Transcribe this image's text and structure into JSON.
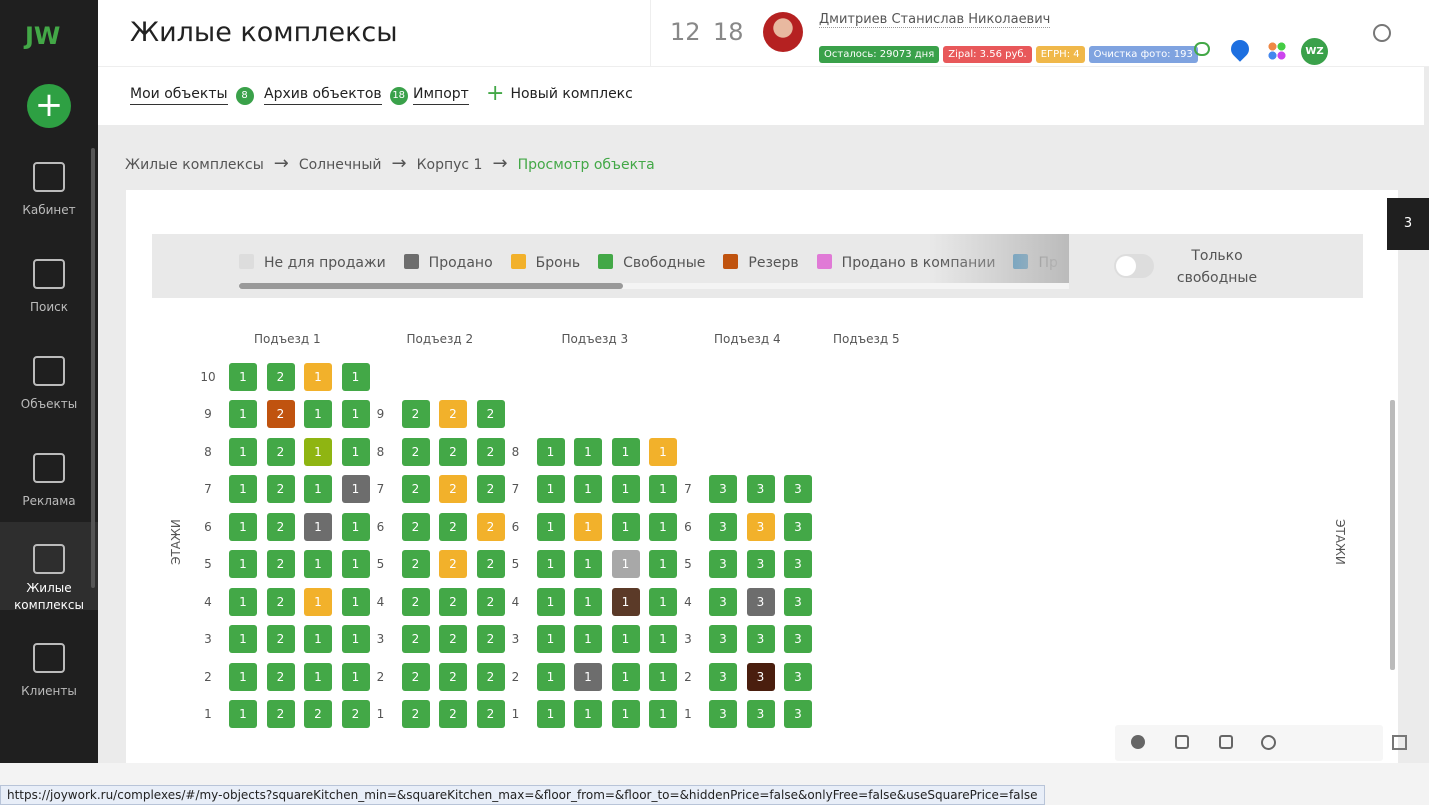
{
  "sidebar": {
    "logo": "JW",
    "items": [
      "Кабинет",
      "Поиск",
      "Объекты",
      "Реклама",
      "Жилые комплексы",
      "Клиенты"
    ]
  },
  "header": {
    "title": "Жилые комплексы",
    "counters": [
      "12",
      "18"
    ],
    "user": "Дмитриев Станислав Николаевич",
    "badges": [
      {
        "text": "Осталось: 29073 дня",
        "color": "#3aa14a"
      },
      {
        "text": "Zipal: 3.56 руб.",
        "color": "#e8585a"
      },
      {
        "text": "ЕГРН: 4",
        "color": "#f0b84a"
      },
      {
        "text": "Очистка фото: 193",
        "color": "#7fa3e0"
      }
    ],
    "avatar": "WZ"
  },
  "tabs": [
    {
      "label": "Мои объекты",
      "count": "8"
    },
    {
      "label": "Архив объектов",
      "count": "18"
    },
    {
      "label": "Импорт"
    },
    {
      "label": "Новый комплекс"
    }
  ],
  "breadcrumbs": [
    "Жилые комплексы",
    "Солнечный",
    "Корпус 1",
    "Просмотр объекта"
  ],
  "legend": [
    {
      "label": "Не для продажи",
      "color": "#dddddd"
    },
    {
      "label": "Продано",
      "color": "#6d6d6d"
    },
    {
      "label": "Бронь",
      "color": "#f2b12b"
    },
    {
      "label": "Свободные",
      "color": "#43a847"
    },
    {
      "label": "Резерв",
      "color": "#c0530f"
    },
    {
      "label": "Продано в компании",
      "color": "#e07ad6"
    },
    {
      "label": "Пр",
      "color": "#1e88c8"
    }
  ],
  "toggle": "Только свободные",
  "side_tab": "3",
  "axis_label": "ЭТАЖИ",
  "entrances": [
    {
      "name": "Подъезд 1",
      "floors": [
        {
          "floor": "10",
          "cells": [
            {
              "label": "1",
              "color": "#43a847"
            },
            {
              "label": "2",
              "color": "#43a847"
            },
            {
              "label": "1",
              "color": "#f2b12b"
            },
            {
              "label": "1",
              "color": "#43a847"
            }
          ]
        },
        {
          "floor": "9",
          "cells": [
            {
              "label": "1",
              "color": "#43a847"
            },
            {
              "label": "2",
              "color": "#c0530f"
            },
            {
              "label": "1",
              "color": "#43a847"
            },
            {
              "label": "1",
              "color": "#43a847"
            }
          ]
        },
        {
          "floor": "8",
          "cells": [
            {
              "label": "1",
              "color": "#43a847"
            },
            {
              "label": "2",
              "color": "#43a847"
            },
            {
              "label": "1",
              "color": "#8fb512"
            },
            {
              "label": "1",
              "color": "#43a847"
            }
          ]
        },
        {
          "floor": "7",
          "cells": [
            {
              "label": "1",
              "color": "#43a847"
            },
            {
              "label": "2",
              "color": "#43a847"
            },
            {
              "label": "1",
              "color": "#43a847"
            },
            {
              "label": "1",
              "color": "#6d6d6d"
            }
          ]
        },
        {
          "floor": "6",
          "cells": [
            {
              "label": "1",
              "color": "#43a847"
            },
            {
              "label": "2",
              "color": "#43a847"
            },
            {
              "label": "1",
              "color": "#6d6d6d"
            },
            {
              "label": "1",
              "color": "#43a847"
            }
          ]
        },
        {
          "floor": "5",
          "cells": [
            {
              "label": "1",
              "color": "#43a847"
            },
            {
              "label": "2",
              "color": "#43a847"
            },
            {
              "label": "1",
              "color": "#43a847"
            },
            {
              "label": "1",
              "color": "#43a847"
            }
          ]
        },
        {
          "floor": "4",
          "cells": [
            {
              "label": "1",
              "color": "#43a847"
            },
            {
              "label": "2",
              "color": "#43a847"
            },
            {
              "label": "1",
              "color": "#f2b12b"
            },
            {
              "label": "1",
              "color": "#43a847"
            }
          ]
        },
        {
          "floor": "3",
          "cells": [
            {
              "label": "1",
              "color": "#43a847"
            },
            {
              "label": "2",
              "color": "#43a847"
            },
            {
              "label": "1",
              "color": "#43a847"
            },
            {
              "label": "1",
              "color": "#43a847"
            }
          ]
        },
        {
          "floor": "2",
          "cells": [
            {
              "label": "1",
              "color": "#43a847"
            },
            {
              "label": "2",
              "color": "#43a847"
            },
            {
              "label": "1",
              "color": "#43a847"
            },
            {
              "label": "1",
              "color": "#43a847"
            }
          ]
        },
        {
          "floor": "1",
          "cells": [
            {
              "label": "1",
              "color": "#43a847"
            },
            {
              "label": "2",
              "color": "#43a847"
            },
            {
              "label": "2",
              "color": "#43a847"
            },
            {
              "label": "2",
              "color": "#43a847"
            }
          ]
        }
      ]
    },
    {
      "name": "Подъезд 2",
      "floors": [
        {
          "floor": "9",
          "cells": [
            {
              "label": "2",
              "color": "#43a847"
            },
            {
              "label": "2",
              "color": "#f2b12b"
            },
            {
              "label": "2",
              "color": "#43a847"
            }
          ]
        },
        {
          "floor": "8",
          "cells": [
            {
              "label": "2",
              "color": "#43a847"
            },
            {
              "label": "2",
              "color": "#43a847"
            },
            {
              "label": "2",
              "color": "#43a847"
            }
          ]
        },
        {
          "floor": "7",
          "cells": [
            {
              "label": "2",
              "color": "#43a847"
            },
            {
              "label": "2",
              "color": "#f2b12b"
            },
            {
              "label": "2",
              "color": "#43a847"
            }
          ]
        },
        {
          "floor": "6",
          "cells": [
            {
              "label": "2",
              "color": "#43a847"
            },
            {
              "label": "2",
              "color": "#43a847"
            },
            {
              "label": "2",
              "color": "#f2b12b"
            }
          ]
        },
        {
          "floor": "5",
          "cells": [
            {
              "label": "2",
              "color": "#43a847"
            },
            {
              "label": "2",
              "color": "#f2b12b"
            },
            {
              "label": "2",
              "color": "#43a847"
            }
          ]
        },
        {
          "floor": "4",
          "cells": [
            {
              "label": "2",
              "color": "#43a847"
            },
            {
              "label": "2",
              "color": "#43a847"
            },
            {
              "label": "2",
              "color": "#43a847"
            }
          ]
        },
        {
          "floor": "3",
          "cells": [
            {
              "label": "2",
              "color": "#43a847"
            },
            {
              "label": "2",
              "color": "#43a847"
            },
            {
              "label": "2",
              "color": "#43a847"
            }
          ]
        },
        {
          "floor": "2",
          "cells": [
            {
              "label": "2",
              "color": "#43a847"
            },
            {
              "label": "2",
              "color": "#43a847"
            },
            {
              "label": "2",
              "color": "#43a847"
            }
          ]
        },
        {
          "floor": "1",
          "cells": [
            {
              "label": "2",
              "color": "#43a847"
            },
            {
              "label": "2",
              "color": "#43a847"
            },
            {
              "label": "2",
              "color": "#43a847"
            }
          ]
        }
      ]
    },
    {
      "name": "Подъезд 3",
      "floors": [
        {
          "floor": "8",
          "cells": [
            {
              "label": "1",
              "color": "#43a847"
            },
            {
              "label": "1",
              "color": "#43a847"
            },
            {
              "label": "1",
              "color": "#43a847"
            },
            {
              "label": "1",
              "color": "#f2b12b"
            }
          ]
        },
        {
          "floor": "7",
          "cells": [
            {
              "label": "1",
              "color": "#43a847"
            },
            {
              "label": "1",
              "color": "#43a847"
            },
            {
              "label": "1",
              "color": "#43a847"
            },
            {
              "label": "1",
              "color": "#43a847"
            }
          ]
        },
        {
          "floor": "6",
          "cells": [
            {
              "label": "1",
              "color": "#43a847"
            },
            {
              "label": "1",
              "color": "#f2b12b"
            },
            {
              "label": "1",
              "color": "#43a847"
            },
            {
              "label": "1",
              "color": "#43a847"
            }
          ]
        },
        {
          "floor": "5",
          "cells": [
            {
              "label": "1",
              "color": "#43a847"
            },
            {
              "label": "1",
              "color": "#43a847"
            },
            {
              "label": "1",
              "color": "#a8a8a8"
            },
            {
              "label": "1",
              "color": "#43a847"
            }
          ]
        },
        {
          "floor": "4",
          "cells": [
            {
              "label": "1",
              "color": "#43a847"
            },
            {
              "label": "1",
              "color": "#43a847"
            },
            {
              "label": "1",
              "color": "#5b3a28"
            },
            {
              "label": "1",
              "color": "#43a847"
            }
          ]
        },
        {
          "floor": "3",
          "cells": [
            {
              "label": "1",
              "color": "#43a847"
            },
            {
              "label": "1",
              "color": "#43a847"
            },
            {
              "label": "1",
              "color": "#43a847"
            },
            {
              "label": "1",
              "color": "#43a847"
            }
          ]
        },
        {
          "floor": "2",
          "cells": [
            {
              "label": "1",
              "color": "#43a847"
            },
            {
              "label": "1",
              "color": "#6d6d6d"
            },
            {
              "label": "1",
              "color": "#43a847"
            },
            {
              "label": "1",
              "color": "#43a847"
            }
          ]
        },
        {
          "floor": "1",
          "cells": [
            {
              "label": "1",
              "color": "#43a847"
            },
            {
              "label": "1",
              "color": "#43a847"
            },
            {
              "label": "1",
              "color": "#43a847"
            },
            {
              "label": "1",
              "color": "#43a847"
            }
          ]
        }
      ]
    },
    {
      "name": "Подъезд 4",
      "floors": [
        {
          "floor": "7",
          "cells": [
            {
              "label": "3",
              "color": "#43a847"
            },
            {
              "label": "3",
              "color": "#43a847"
            },
            {
              "label": "3",
              "color": "#43a847"
            }
          ]
        },
        {
          "floor": "6",
          "cells": [
            {
              "label": "3",
              "color": "#43a847"
            },
            {
              "label": "3",
              "color": "#f2b12b"
            },
            {
              "label": "3",
              "color": "#43a847"
            }
          ]
        },
        {
          "floor": "5",
          "cells": [
            {
              "label": "3",
              "color": "#43a847"
            },
            {
              "label": "3",
              "color": "#43a847"
            },
            {
              "label": "3",
              "color": "#43a847"
            }
          ]
        },
        {
          "floor": "4",
          "cells": [
            {
              "label": "3",
              "color": "#43a847"
            },
            {
              "label": "3",
              "color": "#6d6d6d"
            },
            {
              "label": "3",
              "color": "#43a847"
            }
          ]
        },
        {
          "floor": "3",
          "cells": [
            {
              "label": "3",
              "color": "#43a847"
            },
            {
              "label": "3",
              "color": "#43a847"
            },
            {
              "label": "3",
              "color": "#43a847"
            }
          ]
        },
        {
          "floor": "2",
          "cells": [
            {
              "label": "3",
              "color": "#43a847"
            },
            {
              "label": "3",
              "color": "#4a1e0e"
            },
            {
              "label": "3",
              "color": "#43a847"
            }
          ]
        },
        {
          "floor": "1",
          "cells": [
            {
              "label": "3",
              "color": "#43a847"
            },
            {
              "label": "3",
              "color": "#43a847"
            },
            {
              "label": "3",
              "color": "#43a847"
            }
          ]
        }
      ]
    },
    {
      "name": "Подъезд 5",
      "floors": []
    }
  ],
  "status_url": "https://joywork.ru/complexes/#/my-objects?squareKitchen_min=&squareKitchen_max=&floor_from=&floor_to=&hiddenPrice=false&onlyFree=false&useSquarePrice=false"
}
